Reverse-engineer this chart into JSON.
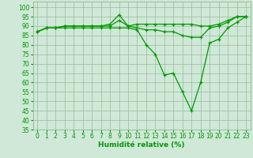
{
  "title": "",
  "xlabel": "Humidité relative (%)",
  "ylabel": "",
  "bg_color": "#cfe8d8",
  "grid_color": "#99bb99",
  "line_color": "#009900",
  "marker_color": "#009900",
  "xlim": [
    -0.5,
    23.5
  ],
  "ylim": [
    35,
    103
  ],
  "yticks": [
    35,
    40,
    45,
    50,
    55,
    60,
    65,
    70,
    75,
    80,
    85,
    90,
    95,
    100
  ],
  "xticks": [
    0,
    1,
    2,
    3,
    4,
    5,
    6,
    7,
    8,
    9,
    10,
    11,
    12,
    13,
    14,
    15,
    16,
    17,
    18,
    19,
    20,
    21,
    22,
    23
  ],
  "series": [
    [
      87,
      89,
      89,
      90,
      90,
      90,
      90,
      90,
      91,
      96,
      90,
      91,
      91,
      91,
      91,
      91,
      91,
      91,
      90,
      90,
      91,
      93,
      95,
      95
    ],
    [
      87,
      89,
      89,
      90,
      90,
      90,
      90,
      90,
      90,
      93,
      90,
      89,
      88,
      88,
      87,
      87,
      85,
      84,
      84,
      89,
      90,
      92,
      95,
      95
    ],
    [
      87,
      89,
      89,
      89,
      89,
      89,
      89,
      89,
      89,
      89,
      89,
      88,
      80,
      75,
      64,
      65,
      55,
      45,
      60,
      81,
      83,
      89,
      92,
      95
    ]
  ],
  "xlabel_fontsize": 6.5,
  "tick_fontsize": 5.5
}
